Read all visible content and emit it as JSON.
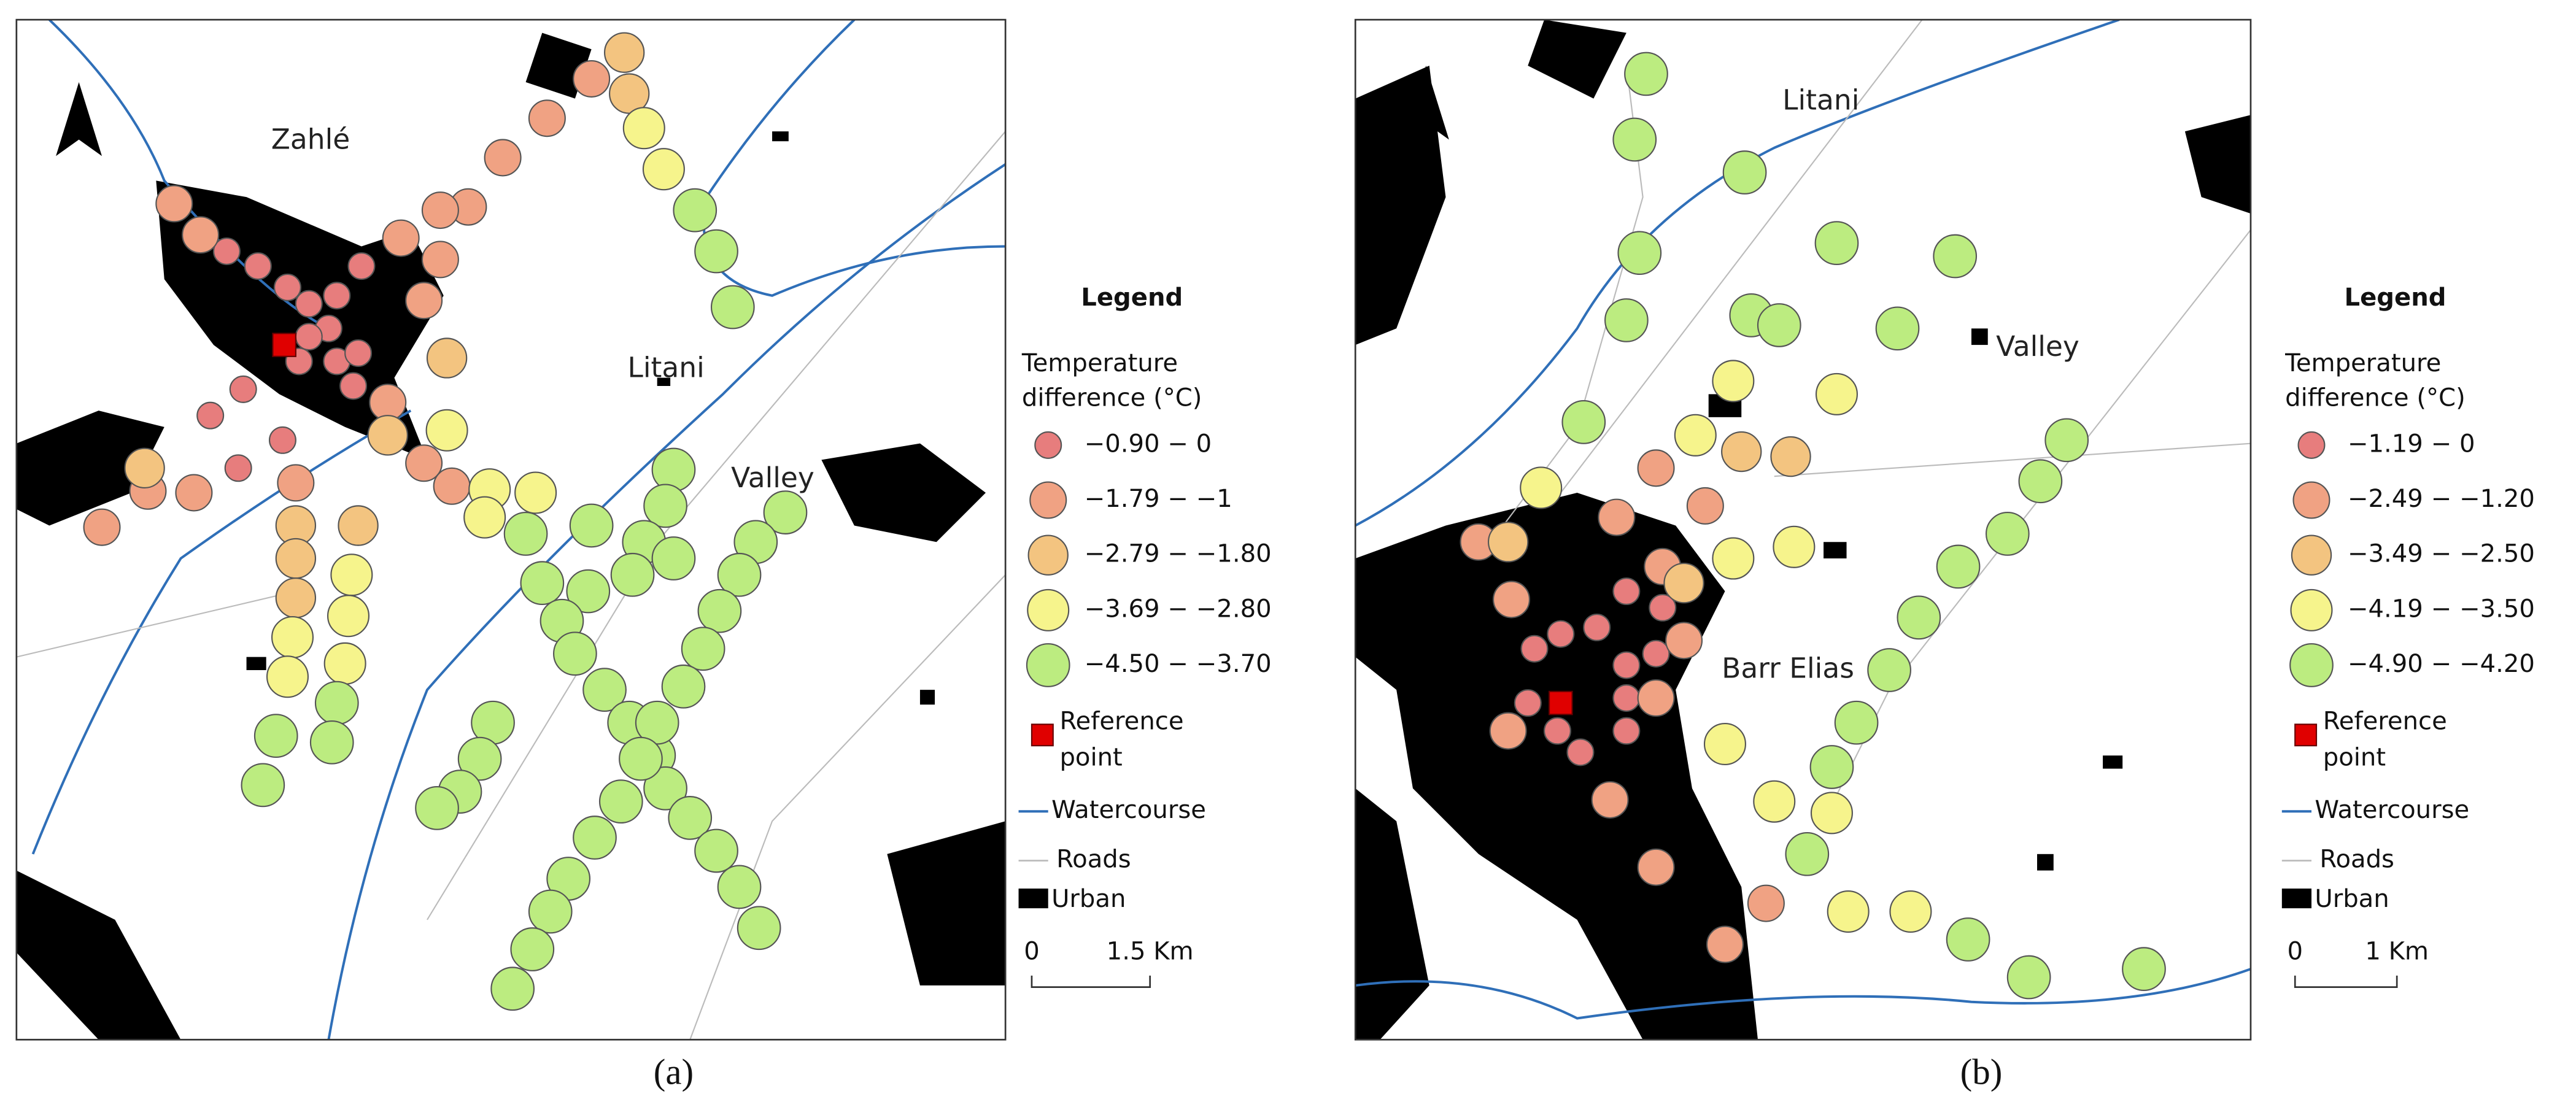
{
  "panels": [
    {
      "caption": "(a)",
      "map_labels": [
        "Zahlé",
        "Litani",
        "Valley"
      ],
      "legend": {
        "title": "Legend",
        "subtitle": [
          "Temperature",
          "difference (°C)"
        ],
        "classes": [
          {
            "label": "−0.90 − 0",
            "color": "#e77d7d"
          },
          {
            "label": "−1.79 − −1",
            "color": "#f0a283"
          },
          {
            "label": "−2.79 − −1.80",
            "color": "#f3c480"
          },
          {
            "label": "−3.69 − −2.80",
            "color": "#f6f48c"
          },
          {
            "label": "−4.50 − −3.70",
            "color": "#bcec80"
          }
        ],
        "reference": [
          "Reference",
          "point"
        ],
        "watercourse": "Watercourse",
        "roads": "Roads",
        "urban": "Urban"
      },
      "scale": {
        "start": "0",
        "end": "1.5 Km"
      }
    },
    {
      "caption": "(b)",
      "map_labels": [
        "Litani",
        "Valley",
        "Barr Elias"
      ],
      "legend": {
        "title": "Legend",
        "subtitle": [
          "Temperature",
          "difference (°C)"
        ],
        "classes": [
          {
            "label": "−1.19 − 0",
            "color": "#e77d7d"
          },
          {
            "label": "−2.49 − −1.20",
            "color": "#f0a283"
          },
          {
            "label": "−3.49 − −2.50",
            "color": "#f3c480"
          },
          {
            "label": "−4.19 − −3.50",
            "color": "#f6f48c"
          },
          {
            "label": "−4.90 − −4.20",
            "color": "#bcec80"
          }
        ],
        "reference": [
          "Reference",
          "point"
        ],
        "watercourse": "Watercourse",
        "roads": "Roads",
        "urban": "Urban"
      },
      "scale": {
        "start": "0",
        "end": "1 Km"
      }
    }
  ]
}
